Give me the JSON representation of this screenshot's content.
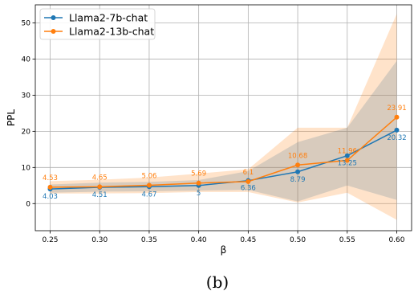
{
  "chart_data": {
    "type": "line",
    "xlabel": "β",
    "ylabel": "PPL",
    "caption": "(b)",
    "x": [
      0.25,
      0.3,
      0.35,
      0.4,
      0.45,
      0.5,
      0.55,
      0.6
    ],
    "x_tick_labels": [
      "0.25",
      "0.30",
      "0.35",
      "0.40",
      "0.45",
      "0.50",
      "0.55",
      "0.60"
    ],
    "y_ticks": [
      0,
      10,
      20,
      30,
      40,
      50
    ],
    "xlim": [
      0.235,
      0.615
    ],
    "ylim": [
      -7.5,
      55
    ],
    "grid": true,
    "legend_position": "top-left",
    "series": [
      {
        "name": "Llama2-7b-chat",
        "color": "#1f77b4",
        "values": [
          4.03,
          4.51,
          4.67,
          5.0,
          6.36,
          8.79,
          13.25,
          20.32
        ],
        "labels": [
          "4.03",
          "4.51",
          "4.67",
          "5",
          "6.36",
          "8.79",
          "13.25",
          "20.32"
        ],
        "band_lower": [
          3.0,
          3.3,
          3.4,
          3.6,
          3.8,
          0.6,
          5.0,
          1.0
        ],
        "band_upper": [
          5.3,
          5.8,
          6.0,
          6.5,
          9.0,
          17.0,
          21.0,
          39.5
        ]
      },
      {
        "name": "Llama2-13b-chat",
        "color": "#ff7f0e",
        "values": [
          4.53,
          4.65,
          5.06,
          5.69,
          6.1,
          10.68,
          11.96,
          23.91
        ],
        "labels": [
          "4.53",
          "4.65",
          "5.06",
          "5.69",
          "6.1",
          "10.68",
          "11.96",
          "23.91"
        ],
        "band_lower": [
          2.8,
          2.8,
          2.9,
          3.2,
          3.2,
          0.3,
          3.0,
          -4.5
        ],
        "band_upper": [
          6.2,
          6.6,
          7.2,
          8.3,
          9.5,
          21.0,
          21.0,
          52.5
        ]
      }
    ]
  }
}
